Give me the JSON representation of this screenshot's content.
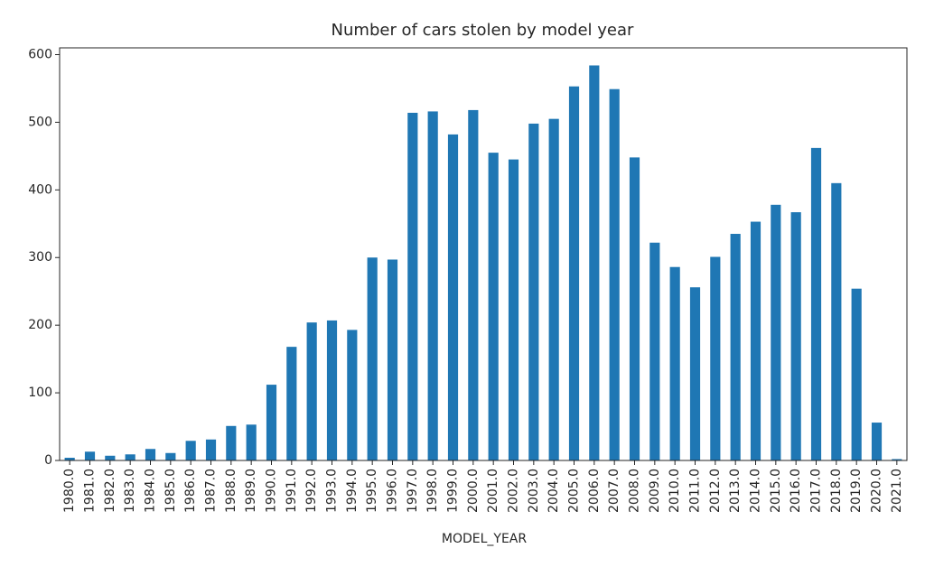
{
  "chart_data": {
    "type": "bar",
    "title": "Number of cars stolen by model year",
    "xlabel": "MODEL_YEAR",
    "ylabel": "",
    "ylim": [
      0,
      610
    ],
    "yticks": [
      0,
      100,
      200,
      300,
      400,
      500,
      600
    ],
    "grid": false,
    "legend": "none",
    "bar_color": "#1f77b4",
    "categories": [
      "1980.0",
      "1981.0",
      "1982.0",
      "1983.0",
      "1984.0",
      "1985.0",
      "1986.0",
      "1987.0",
      "1988.0",
      "1989.0",
      "1990.0",
      "1991.0",
      "1992.0",
      "1993.0",
      "1994.0",
      "1995.0",
      "1996.0",
      "1997.0",
      "1998.0",
      "1999.0",
      "2000.0",
      "2001.0",
      "2002.0",
      "2003.0",
      "2004.0",
      "2005.0",
      "2006.0",
      "2007.0",
      "2008.0",
      "2009.0",
      "2010.0",
      "2011.0",
      "2012.0",
      "2013.0",
      "2014.0",
      "2015.0",
      "2016.0",
      "2017.0",
      "2018.0",
      "2019.0",
      "2020.0",
      "2021.0"
    ],
    "values": [
      4,
      13,
      7,
      9,
      17,
      11,
      29,
      31,
      51,
      53,
      112,
      168,
      204,
      207,
      193,
      300,
      297,
      514,
      516,
      482,
      518,
      455,
      445,
      498,
      505,
      553,
      584,
      549,
      448,
      322,
      286,
      256,
      301,
      335,
      353,
      378,
      367,
      462,
      410,
      254,
      56,
      2
    ]
  }
}
